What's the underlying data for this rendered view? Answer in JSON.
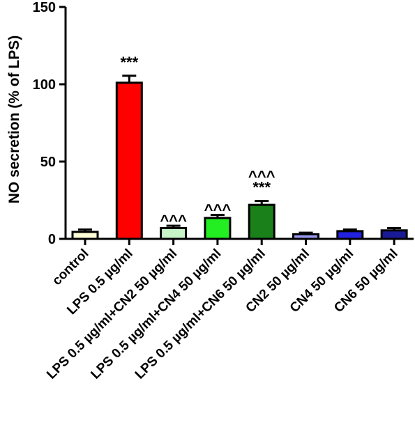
{
  "chart_data": {
    "type": "bar",
    "title": "",
    "xlabel": "",
    "ylabel": "NO secretion (% of LPS)",
    "ylim": [
      0,
      150
    ],
    "yticks": [
      0,
      50,
      100,
      150
    ],
    "grid": false,
    "legend": "none",
    "categories": [
      "control",
      "LPS 0.5 µg/ml",
      "LPS 0.5 µg/ml+CN2 50 µg/ml",
      "LPS 0.5 µg/ml+CN4 50 µg/ml",
      "LPS 0.5 µg/ml+CN6 50 µg/ml",
      "CN2 50 µg/ml",
      "CN4 50 µg/ml",
      "CN6 50 µg/ml"
    ],
    "values": [
      4.5,
      101,
      7,
      13.5,
      22,
      3,
      5,
      5.5
    ],
    "errors": [
      1.5,
      4.5,
      1.5,
      2,
      2.5,
      1,
      1,
      1.5
    ],
    "colors": [
      "#ffffd8",
      "#ff0000",
      "#c8f5c8",
      "#22ee22",
      "#1a801a",
      "#9a9af0",
      "#2222e0",
      "#1a1a96"
    ],
    "annotations": [
      {
        "category": 1,
        "lines": [
          "***"
        ]
      },
      {
        "category": 2,
        "lines": [
          "^^^"
        ]
      },
      {
        "category": 3,
        "lines": [
          "^^^"
        ]
      },
      {
        "category": 4,
        "lines": [
          "^^^",
          "***"
        ]
      }
    ]
  }
}
